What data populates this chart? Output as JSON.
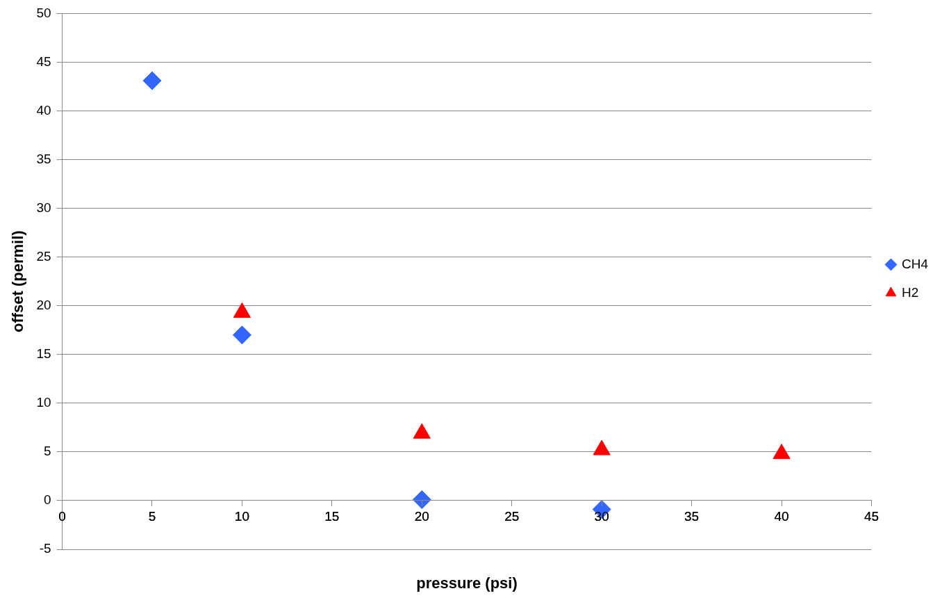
{
  "chart_data": {
    "type": "scatter",
    "xlabel": "pressure (psi)",
    "ylabel": "offset (permil)",
    "xlim": [
      0,
      45
    ],
    "xticks": [
      0,
      5,
      10,
      15,
      20,
      25,
      30,
      35,
      40,
      45
    ],
    "ylim": [
      -5,
      50
    ],
    "yticks": [
      -5,
      0,
      5,
      10,
      15,
      20,
      25,
      30,
      35,
      40,
      45,
      50
    ],
    "grid": "y",
    "legend": "right",
    "series": [
      {
        "name": "CH4",
        "color": "#3366ff",
        "marker": "diamond",
        "x": [
          5,
          10,
          20,
          30
        ],
        "values": [
          43.1,
          17,
          0.1,
          -0.9
        ]
      },
      {
        "name": "H2",
        "color": "#ff0000",
        "marker": "triangle",
        "x": [
          10,
          20,
          30,
          40
        ],
        "values": [
          19.3,
          6.9,
          5.2,
          4.8
        ]
      }
    ]
  }
}
